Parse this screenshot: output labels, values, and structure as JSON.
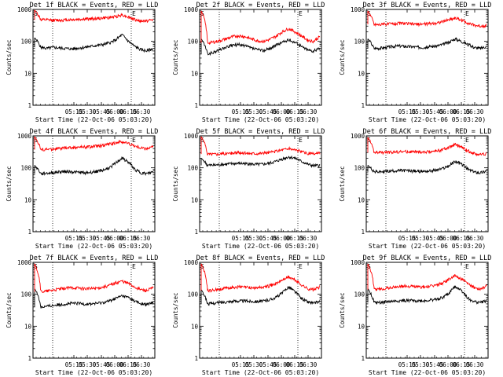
{
  "chart_data": [
    {
      "type": "line",
      "title": "Det 1f BLACK = Events, RED = LLD",
      "xlabel": "Start Time (22-Oct-06 05:03:20)",
      "ylabel": "Counts/sec",
      "yscale": "log",
      "ylim": [
        1,
        1000
      ],
      "y_tick_labels": [
        "1",
        "10",
        "100",
        "1000"
      ],
      "x_tick_labels": [
        "05:15",
        "05:30",
        "05:45",
        "06:00",
        "06:15",
        "06:30"
      ],
      "markers": [
        "S",
        "E"
      ],
      "series": [
        {
          "name": "Events",
          "color": "#000000",
          "values": [
            130,
            65,
            60,
            65,
            62,
            60,
            58,
            62,
            65,
            70,
            75,
            80,
            90,
            110,
            160,
            100,
            70,
            55,
            50,
            60
          ]
        },
        {
          "name": "LLD",
          "color": "#ff0000",
          "values": [
            950,
            470,
            470,
            460,
            460,
            470,
            480,
            490,
            500,
            510,
            520,
            540,
            560,
            600,
            680,
            580,
            480,
            430,
            440,
            470
          ]
        }
      ]
    },
    {
      "type": "line",
      "title": "Det 2f BLACK = Events, RED = LLD",
      "xlabel": "Start Time (22-Oct-06 05:03:20)",
      "ylabel": "Counts/sec",
      "yscale": "log",
      "ylim": [
        1,
        1000
      ],
      "y_tick_labels": [
        "1",
        "10",
        "100",
        "1000"
      ],
      "x_tick_labels": [
        "05:15",
        "05:30",
        "05:45",
        "06:00",
        "06:15",
        "06:30"
      ],
      "markers": [
        "S",
        "E"
      ],
      "series": [
        {
          "name": "Events",
          "color": "#000000",
          "values": [
            120,
            40,
            45,
            55,
            65,
            75,
            80,
            72,
            62,
            55,
            52,
            60,
            75,
            95,
            110,
            95,
            70,
            55,
            50,
            60
          ]
        },
        {
          "name": "LLD",
          "color": "#ff0000",
          "values": [
            900,
            90,
            95,
            105,
            120,
            140,
            150,
            140,
            120,
            105,
            100,
            115,
            145,
            200,
            250,
            200,
            150,
            110,
            100,
            140
          ]
        }
      ]
    },
    {
      "type": "line",
      "title": "Det 3f BLACK = Events, RED = LLD",
      "xlabel": "Start Time (22-Oct-06 05:03:20)",
      "ylabel": "Counts/sec",
      "yscale": "log",
      "ylim": [
        1,
        1000
      ],
      "y_tick_labels": [
        "1",
        "10",
        "100",
        "1000"
      ],
      "x_tick_labels": [
        "05:15",
        "05:30",
        "05:45",
        "06:00",
        "06:15",
        "06:30"
      ],
      "markers": [
        "S",
        "E"
      ],
      "series": [
        {
          "name": "Events",
          "color": "#000000",
          "values": [
            120,
            60,
            62,
            65,
            70,
            72,
            70,
            68,
            66,
            65,
            68,
            72,
            80,
            95,
            120,
            100,
            80,
            65,
            60,
            70
          ]
        },
        {
          "name": "LLD",
          "color": "#ff0000",
          "values": [
            900,
            340,
            340,
            350,
            360,
            370,
            360,
            350,
            345,
            350,
            360,
            380,
            410,
            480,
            540,
            460,
            380,
            320,
            300,
            320
          ]
        }
      ]
    },
    {
      "type": "line",
      "title": "Det 4f BLACK = Events, RED = LLD",
      "xlabel": "Start Time (22-Oct-06 05:03:20)",
      "ylabel": "Counts/sec",
      "yscale": "log",
      "ylim": [
        1,
        1000
      ],
      "y_tick_labels": [
        "1",
        "10",
        "100",
        "1000"
      ],
      "x_tick_labels": [
        "05:15",
        "05:30",
        "05:45",
        "06:00",
        "06:15",
        "06:30"
      ],
      "markers": [
        "S",
        "E"
      ],
      "series": [
        {
          "name": "Events",
          "color": "#000000",
          "values": [
            120,
            65,
            68,
            70,
            75,
            78,
            75,
            72,
            70,
            72,
            78,
            85,
            100,
            140,
            200,
            150,
            90,
            70,
            65,
            75
          ]
        },
        {
          "name": "LLD",
          "color": "#ff0000",
          "values": [
            950,
            370,
            380,
            390,
            400,
            420,
            430,
            440,
            450,
            460,
            480,
            510,
            550,
            620,
            650,
            580,
            480,
            420,
            400,
            450
          ]
        }
      ]
    },
    {
      "type": "line",
      "title": "Det 5f BLACK = Events, RED = LLD",
      "xlabel": "Start Time (22-Oct-06 05:03:20)",
      "ylabel": "Counts/sec",
      "yscale": "log",
      "ylim": [
        1,
        1000
      ],
      "y_tick_labels": [
        "1",
        "10",
        "100",
        "1000"
      ],
      "x_tick_labels": [
        "05:15",
        "05:30",
        "05:45",
        "06:00",
        "06:15",
        "06:30"
      ],
      "markers": [
        "S",
        "E"
      ],
      "series": [
        {
          "name": "Events",
          "color": "#000000",
          "values": [
            200,
            120,
            120,
            125,
            130,
            135,
            138,
            135,
            130,
            128,
            130,
            140,
            160,
            190,
            220,
            200,
            160,
            130,
            115,
            120
          ]
        },
        {
          "name": "LLD",
          "color": "#ff0000",
          "values": [
            950,
            270,
            270,
            275,
            280,
            290,
            295,
            290,
            285,
            285,
            290,
            305,
            330,
            370,
            400,
            370,
            320,
            280,
            270,
            290
          ]
        }
      ]
    },
    {
      "type": "line",
      "title": "Det 6f BLACK = Events, RED = LLD",
      "xlabel": "Start Time (22-Oct-06 05:03:20)",
      "ylabel": "Counts/sec",
      "yscale": "log",
      "ylim": [
        1,
        1000
      ],
      "y_tick_labels": [
        "1",
        "10",
        "100",
        "1000"
      ],
      "x_tick_labels": [
        "05:15",
        "05:30",
        "05:45",
        "06:00",
        "06:15",
        "06:30"
      ],
      "markers": [
        "S",
        "E"
      ],
      "series": [
        {
          "name": "Events",
          "color": "#000000",
          "values": [
            120,
            75,
            75,
            78,
            80,
            82,
            82,
            80,
            78,
            78,
            80,
            85,
            95,
            115,
            160,
            130,
            90,
            75,
            70,
            80
          ]
        },
        {
          "name": "LLD",
          "color": "#ff0000",
          "values": [
            900,
            300,
            300,
            305,
            310,
            320,
            320,
            315,
            310,
            310,
            320,
            340,
            370,
            430,
            530,
            440,
            340,
            280,
            260,
            280
          ]
        }
      ]
    },
    {
      "type": "line",
      "title": "Det 7f BLACK = Events, RED = LLD",
      "xlabel": "Start Time (22-Oct-06 05:03:20)",
      "ylabel": "Counts/sec",
      "yscale": "log",
      "ylim": [
        1,
        1000
      ],
      "y_tick_labels": [
        "1",
        "10",
        "100",
        "1000"
      ],
      "x_tick_labels": [
        "05:15",
        "05:30",
        "05:45",
        "06:00",
        "06:15",
        "06:30"
      ],
      "markers": [
        "S",
        "E"
      ],
      "series": [
        {
          "name": "Events",
          "color": "#000000",
          "values": [
            150,
            40,
            42,
            45,
            48,
            50,
            52,
            52,
            50,
            50,
            52,
            56,
            62,
            75,
            90,
            80,
            62,
            50,
            48,
            55
          ]
        },
        {
          "name": "LLD",
          "color": "#ff0000",
          "values": [
            900,
            120,
            125,
            135,
            145,
            155,
            160,
            158,
            150,
            150,
            155,
            170,
            190,
            230,
            260,
            220,
            170,
            140,
            130,
            160
          ]
        }
      ]
    },
    {
      "type": "line",
      "title": "Det 8f BLACK = Events, RED = LLD",
      "xlabel": "Start Time (22-Oct-06 05:03:20)",
      "ylabel": "Counts/sec",
      "yscale": "log",
      "ylim": [
        1,
        1000
      ],
      "y_tick_labels": [
        "1",
        "10",
        "100",
        "1000"
      ],
      "x_tick_labels": [
        "05:15",
        "05:30",
        "05:45",
        "06:00",
        "06:15",
        "06:30"
      ],
      "markers": [
        "S",
        "E"
      ],
      "series": [
        {
          "name": "Events",
          "color": "#000000",
          "values": [
            140,
            50,
            52,
            55,
            58,
            60,
            62,
            62,
            60,
            60,
            62,
            68,
            80,
            110,
            170,
            120,
            75,
            58,
            52,
            60
          ]
        },
        {
          "name": "LLD",
          "color": "#ff0000",
          "values": [
            900,
            130,
            135,
            145,
            155,
            165,
            170,
            168,
            160,
            160,
            168,
            185,
            215,
            280,
            350,
            280,
            200,
            150,
            140,
            170
          ]
        }
      ]
    },
    {
      "type": "line",
      "title": "Det 9f BLACK = Events, RED = LLD",
      "xlabel": "Start Time (22-Oct-06 05:03:20)",
      "ylabel": "Counts/sec",
      "yscale": "log",
      "ylim": [
        1,
        1000
      ],
      "y_tick_labels": [
        "1",
        "10",
        "100",
        "1000"
      ],
      "x_tick_labels": [
        "05:15",
        "05:30",
        "05:45",
        "06:00",
        "06:15",
        "06:30"
      ],
      "markers": [
        "S",
        "E"
      ],
      "series": [
        {
          "name": "Events",
          "color": "#000000",
          "values": [
            150,
            55,
            55,
            58,
            60,
            62,
            64,
            64,
            62,
            62,
            65,
            70,
            80,
            105,
            180,
            130,
            75,
            58,
            55,
            62
          ]
        },
        {
          "name": "LLD",
          "color": "#ff0000",
          "values": [
            900,
            140,
            145,
            155,
            165,
            175,
            180,
            178,
            170,
            170,
            178,
            195,
            225,
            300,
            380,
            300,
            210,
            160,
            150,
            180
          ]
        }
      ]
    }
  ]
}
